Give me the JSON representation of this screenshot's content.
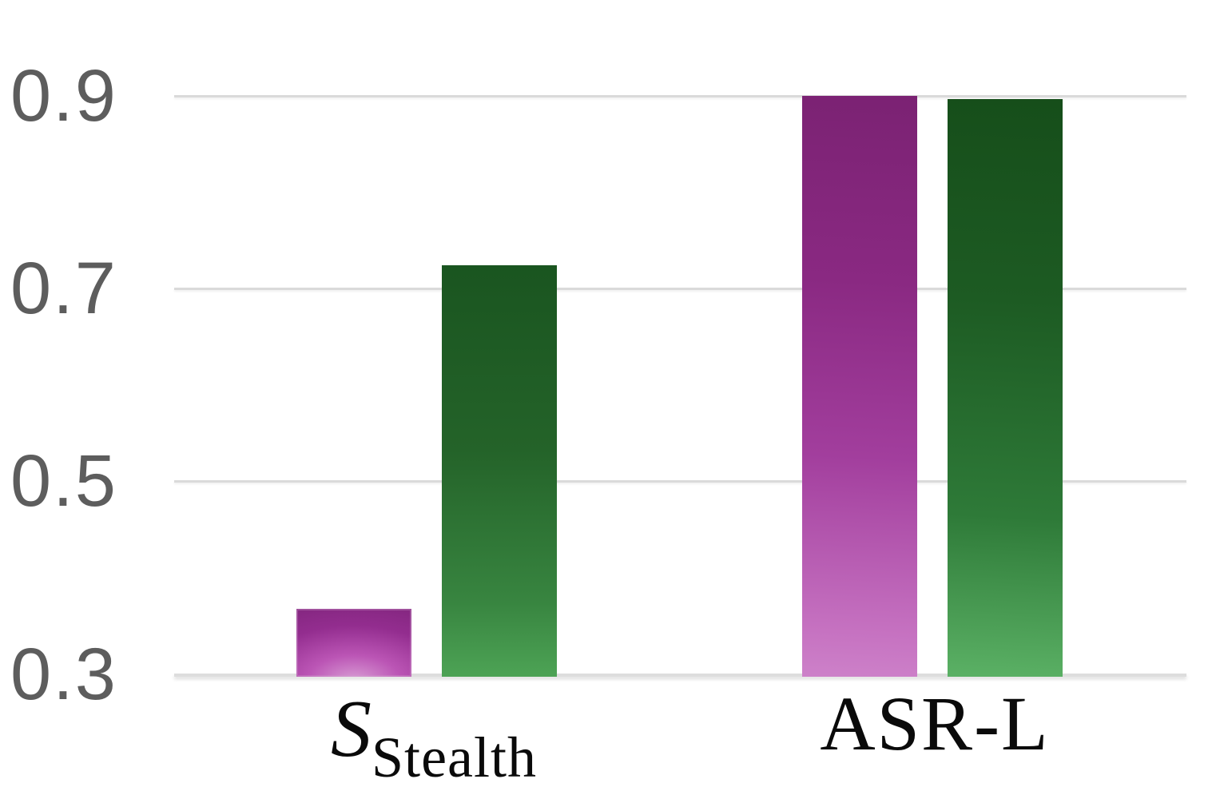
{
  "figure": {
    "background": "#ffffff"
  },
  "yaxis": {
    "tick_labels": [
      "0.9",
      "0.7",
      "0.5",
      "0.3"
    ],
    "label_color": "#5d5d5d"
  },
  "xaxis": {
    "labels": [
      {
        "main": "S",
        "sub": "Stealth"
      },
      {
        "main": "ASR-L",
        "sub": ""
      }
    ],
    "label_color": "#0a0a0a"
  },
  "chart_data": {
    "type": "bar",
    "categories": [
      "S_Stealth",
      "ASR-L"
    ],
    "series": [
      {
        "name": "magenta",
        "values": [
          0.368,
          0.9
        ],
        "color_top": "#7b2273",
        "color_bottom": "#cd81c9"
      },
      {
        "name": "green",
        "values": [
          0.724,
          0.897
        ],
        "color_top": "#1a5520",
        "color_bottom": "#55ab5e"
      }
    ],
    "title": "",
    "xlabel": "",
    "ylabel": "",
    "yticks": [
      0.9,
      0.7,
      0.5,
      0.3
    ],
    "ylim": [
      0.3,
      0.93
    ],
    "grid": true,
    "gridline_color": "#dadada",
    "legend_position": "none"
  }
}
